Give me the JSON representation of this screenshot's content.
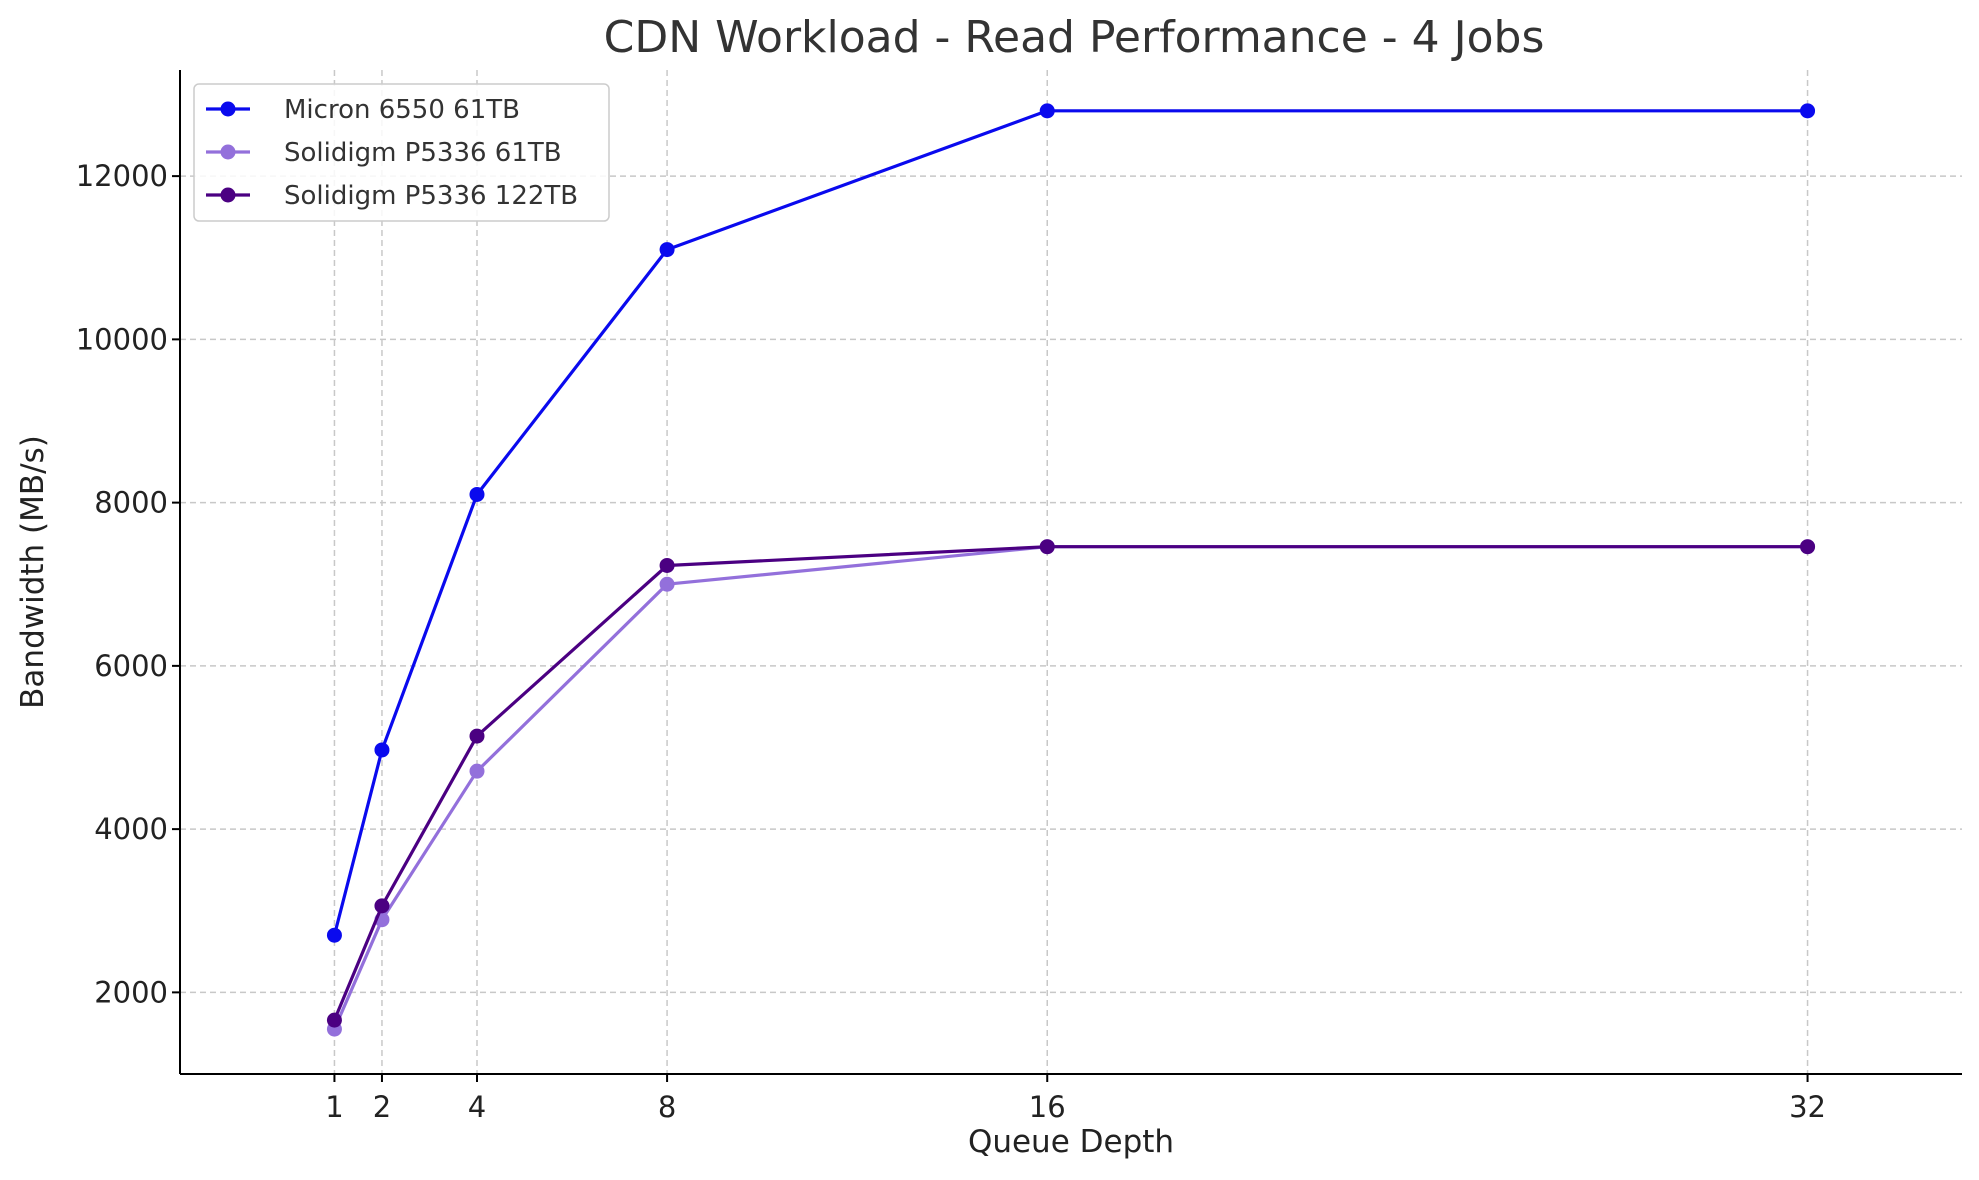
{
  "chart_data": {
    "type": "line",
    "title": "CDN Workload - Read Performance - 4 Jobs",
    "xlabel": "Queue Depth",
    "ylabel": "Bandwidth (MB/s)",
    "x": [
      1,
      2,
      4,
      8,
      16,
      32
    ],
    "x_tick_labels": [
      "1",
      "2",
      "4",
      "8",
      "16",
      "32"
    ],
    "y_ticks": [
      2000,
      4000,
      6000,
      8000,
      10000,
      12000
    ],
    "xlim": [
      -2.25,
      35.25
    ],
    "ylim": [
      1000,
      13300
    ],
    "grid": true,
    "legend_position": "top-left",
    "series": [
      {
        "name": "Micron 6550 61TB",
        "color": "#0a0aee",
        "values": [
          2700,
          4970,
          8100,
          11100,
          12800,
          12800
        ]
      },
      {
        "name": "Solidigm P5336 61TB",
        "color": "#9370db",
        "values": [
          1550,
          2890,
          4710,
          7000,
          7460,
          7460
        ]
      },
      {
        "name": "Solidigm P5336 122TB",
        "color": "#4b0082",
        "values": [
          1660,
          3060,
          5140,
          7230,
          7460,
          7460
        ]
      }
    ]
  }
}
